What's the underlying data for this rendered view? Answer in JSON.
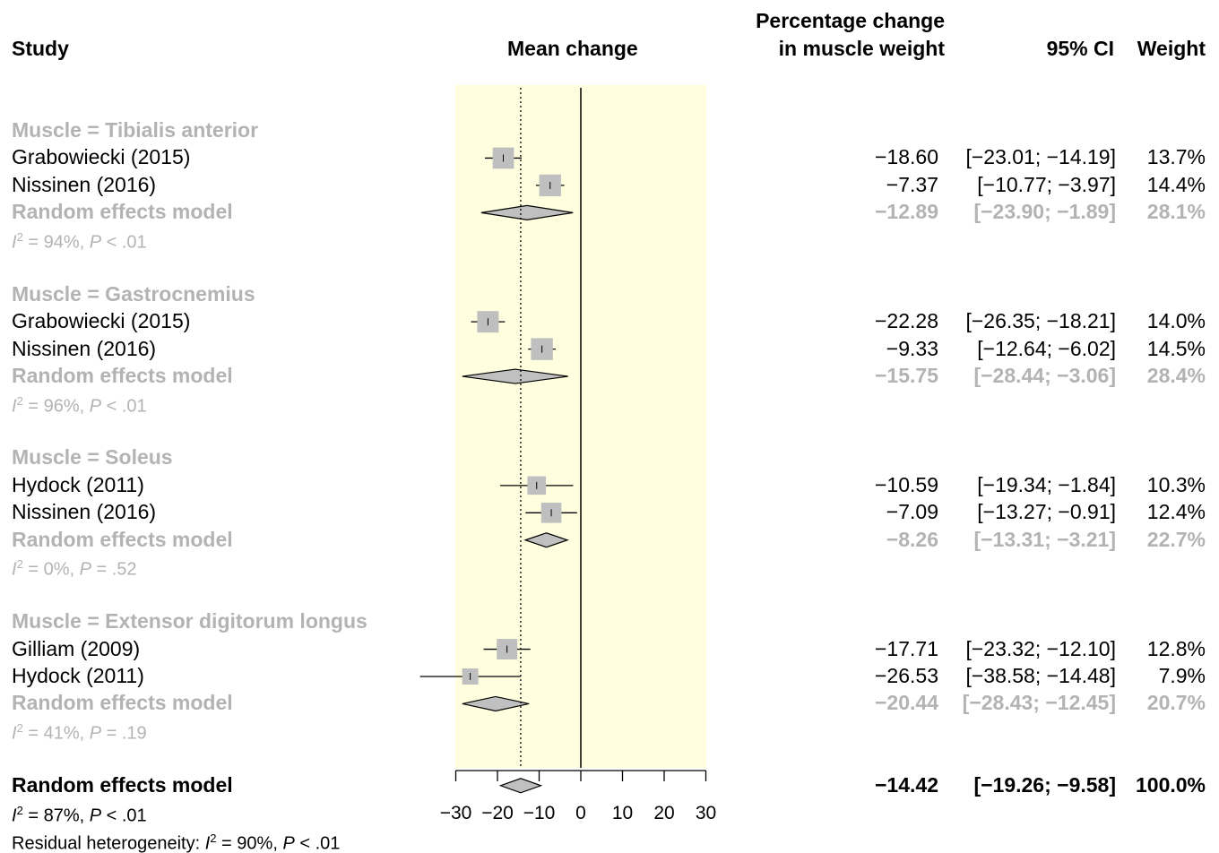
{
  "headers": {
    "study": "Study",
    "mean_change": "Mean change",
    "pct_line1": "Percentage change",
    "pct_line2": "in muscle weight",
    "ci": "95% CI",
    "weight": "Weight"
  },
  "chart_data": {
    "type": "forest",
    "xaxis": {
      "range": [
        -30,
        30
      ],
      "ticks": [
        -30,
        -20,
        -10,
        0,
        10,
        20,
        30
      ],
      "tick_labels": [
        "−30",
        "−20",
        "−10",
        "0",
        "10",
        "20",
        "30"
      ]
    },
    "reference_line": 0,
    "overall_line": -14.42,
    "groups": [
      {
        "title": "Muscle = Tibialis anterior",
        "studies": [
          {
            "name": "Grabowiecki (2015)",
            "est": -18.6,
            "lo": -23.01,
            "hi": -14.19,
            "est_text": "−18.60",
            "ci_text": "[−23.01; −14.19]",
            "weight": "13.7%"
          },
          {
            "name": "Nissinen (2016)",
            "est": -7.37,
            "lo": -10.77,
            "hi": -3.97,
            "est_text": "−7.37",
            "ci_text": "[−10.77;  −3.97]",
            "weight": "14.4%"
          }
        ],
        "model": {
          "name": "Random effects model",
          "est": -12.89,
          "lo": -23.9,
          "hi": -1.89,
          "est_text": "−12.89",
          "ci_text": "[−23.90;  −1.89]",
          "weight": "28.1%"
        },
        "heterogeneity": {
          "i2": "= 94%,",
          "p": "< .01"
        }
      },
      {
        "title": "Muscle = Gastrocnemius",
        "studies": [
          {
            "name": "Grabowiecki (2015)",
            "est": -22.28,
            "lo": -26.35,
            "hi": -18.21,
            "est_text": "−22.28",
            "ci_text": "[−26.35; −18.21]",
            "weight": "14.0%"
          },
          {
            "name": "Nissinen (2016)",
            "est": -9.33,
            "lo": -12.64,
            "hi": -6.02,
            "est_text": "−9.33",
            "ci_text": "[−12.64;  −6.02]",
            "weight": "14.5%"
          }
        ],
        "model": {
          "name": "Random effects model",
          "est": -15.75,
          "lo": -28.44,
          "hi": -3.06,
          "est_text": "−15.75",
          "ci_text": "[−28.44;  −3.06]",
          "weight": "28.4%"
        },
        "heterogeneity": {
          "i2": "= 96%,",
          "p": "< .01"
        }
      },
      {
        "title": "Muscle = Soleus",
        "studies": [
          {
            "name": "Hydock (2011)",
            "est": -10.59,
            "lo": -19.34,
            "hi": -1.84,
            "est_text": "−10.59",
            "ci_text": "[−19.34;  −1.84]",
            "weight": "10.3%"
          },
          {
            "name": "Nissinen (2016)",
            "est": -7.09,
            "lo": -13.27,
            "hi": -0.91,
            "est_text": "−7.09",
            "ci_text": "[−13.27;  −0.91]",
            "weight": "12.4%"
          }
        ],
        "model": {
          "name": "Random effects model",
          "est": -8.26,
          "lo": -13.31,
          "hi": -3.21,
          "est_text": "−8.26",
          "ci_text": "[−13.31;  −3.21]",
          "weight": "22.7%"
        },
        "heterogeneity": {
          "i2": "= 0%,",
          "p": "= .52"
        }
      },
      {
        "title": "Muscle = Extensor digitorum longus",
        "studies": [
          {
            "name": "Gilliam (2009)",
            "est": -17.71,
            "lo": -23.32,
            "hi": -12.1,
            "est_text": "−17.71",
            "ci_text": "[−23.32; −12.10]",
            "weight": "12.8%"
          },
          {
            "name": "Hydock (2011)",
            "est": -26.53,
            "lo": -38.58,
            "hi": -14.48,
            "est_text": "−26.53",
            "ci_text": "[−38.58; −14.48]",
            "weight": "7.9%"
          }
        ],
        "model": {
          "name": "Random effects model",
          "est": -20.44,
          "lo": -28.43,
          "hi": -12.45,
          "est_text": "−20.44",
          "ci_text": "[−28.43; −12.45]",
          "weight": "20.7%"
        },
        "heterogeneity": {
          "i2": "= 41%,",
          "p": "= .19"
        }
      }
    ],
    "overall": {
      "name": "Random effects model",
      "est": -14.42,
      "lo": -19.26,
      "hi": -9.58,
      "est_text": "−14.42",
      "ci_text": "[−19.26;  −9.58]",
      "weight": "100.0%",
      "heterogeneity": {
        "i2": "= 87%,",
        "p": "< .01"
      },
      "residual": {
        "label": "Residual heterogeneity:",
        "i2": "= 90%,",
        "p": "< .01"
      }
    },
    "colors": {
      "highlight_band": "#ffffe0",
      "box": "#bfbfbf",
      "diamond": "#c0c0c0",
      "grey_text": "#b3b3b3"
    }
  }
}
